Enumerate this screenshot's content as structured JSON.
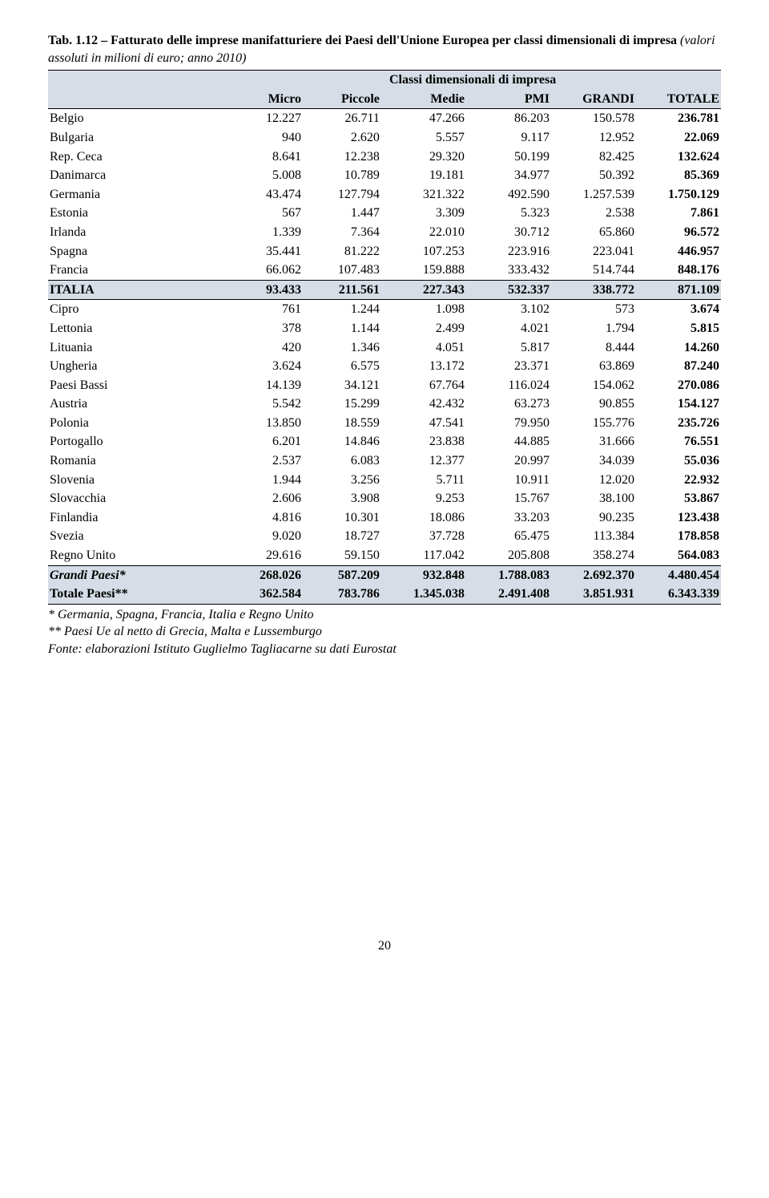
{
  "title_bold": "Tab. 1.12 – Fatturato delle imprese manifatturiere dei Paesi dell'Unione Europea per classi dimensionali di impresa",
  "title_italic": "(valori assoluti in milioni di euro; anno 2010)",
  "super_header": "Classi dimensionali di impresa",
  "columns": [
    "Micro",
    "Piccole",
    "Medie",
    "PMI",
    "GRANDI",
    "TOTALE"
  ],
  "rows": [
    {
      "name": "Belgio",
      "vals": [
        "12.227",
        "26.711",
        "47.266",
        "86.203",
        "150.578",
        "236.781"
      ]
    },
    {
      "name": "Bulgaria",
      "vals": [
        "940",
        "2.620",
        "5.557",
        "9.117",
        "12.952",
        "22.069"
      ]
    },
    {
      "name": "Rep. Ceca",
      "vals": [
        "8.641",
        "12.238",
        "29.320",
        "50.199",
        "82.425",
        "132.624"
      ]
    },
    {
      "name": "Danimarca",
      "vals": [
        "5.008",
        "10.789",
        "19.181",
        "34.977",
        "50.392",
        "85.369"
      ]
    },
    {
      "name": "Germania",
      "vals": [
        "43.474",
        "127.794",
        "321.322",
        "492.590",
        "1.257.539",
        "1.750.129"
      ]
    },
    {
      "name": "Estonia",
      "vals": [
        "567",
        "1.447",
        "3.309",
        "5.323",
        "2.538",
        "7.861"
      ]
    },
    {
      "name": "Irlanda",
      "vals": [
        "1.339",
        "7.364",
        "22.010",
        "30.712",
        "65.860",
        "96.572"
      ]
    },
    {
      "name": "Spagna",
      "vals": [
        "35.441",
        "81.222",
        "107.253",
        "223.916",
        "223.041",
        "446.957"
      ]
    },
    {
      "name": "Francia",
      "vals": [
        "66.062",
        "107.483",
        "159.888",
        "333.432",
        "514.744",
        "848.176"
      ]
    },
    {
      "name": "ITALIA",
      "vals": [
        "93.433",
        "211.561",
        "227.343",
        "532.337",
        "338.772",
        "871.109"
      ],
      "hl": true,
      "bold": true,
      "bt": true
    },
    {
      "name": "Cipro",
      "vals": [
        "761",
        "1.244",
        "1.098",
        "3.102",
        "573",
        "3.674"
      ],
      "bt": true
    },
    {
      "name": "Lettonia",
      "vals": [
        "378",
        "1.144",
        "2.499",
        "4.021",
        "1.794",
        "5.815"
      ]
    },
    {
      "name": "Lituania",
      "vals": [
        "420",
        "1.346",
        "4.051",
        "5.817",
        "8.444",
        "14.260"
      ]
    },
    {
      "name": "Ungheria",
      "vals": [
        "3.624",
        "6.575",
        "13.172",
        "23.371",
        "63.869",
        "87.240"
      ]
    },
    {
      "name": "Paesi Bassi",
      "vals": [
        "14.139",
        "34.121",
        "67.764",
        "116.024",
        "154.062",
        "270.086"
      ]
    },
    {
      "name": "Austria",
      "vals": [
        "5.542",
        "15.299",
        "42.432",
        "63.273",
        "90.855",
        "154.127"
      ]
    },
    {
      "name": "Polonia",
      "vals": [
        "13.850",
        "18.559",
        "47.541",
        "79.950",
        "155.776",
        "235.726"
      ]
    },
    {
      "name": "Portogallo",
      "vals": [
        "6.201",
        "14.846",
        "23.838",
        "44.885",
        "31.666",
        "76.551"
      ]
    },
    {
      "name": "Romania",
      "vals": [
        "2.537",
        "6.083",
        "12.377",
        "20.997",
        "34.039",
        "55.036"
      ]
    },
    {
      "name": "Slovenia",
      "vals": [
        "1.944",
        "3.256",
        "5.711",
        "10.911",
        "12.020",
        "22.932"
      ]
    },
    {
      "name": "Slovacchia",
      "vals": [
        "2.606",
        "3.908",
        "9.253",
        "15.767",
        "38.100",
        "53.867"
      ]
    },
    {
      "name": "Finlandia",
      "vals": [
        "4.816",
        "10.301",
        "18.086",
        "33.203",
        "90.235",
        "123.438"
      ]
    },
    {
      "name": "Svezia",
      "vals": [
        "9.020",
        "18.727",
        "37.728",
        "65.475",
        "113.384",
        "178.858"
      ]
    },
    {
      "name": "Regno Unito",
      "vals": [
        "29.616",
        "59.150",
        "117.042",
        "205.808",
        "358.274",
        "564.083"
      ]
    },
    {
      "name": "Grandi Paesi*",
      "vals": [
        "268.026",
        "587.209",
        "932.848",
        "1.788.083",
        "2.692.370",
        "4.480.454"
      ],
      "hl": true,
      "bold": true,
      "italic": true,
      "bth": true
    },
    {
      "name": "Totale Paesi**",
      "vals": [
        "362.584",
        "783.786",
        "1.345.038",
        "2.491.408",
        "3.851.931",
        "6.343.339"
      ],
      "hl": true,
      "bold": true,
      "bbh": true
    }
  ],
  "footnote1": "* Germania, Spagna, Francia, Italia e Regno Unito",
  "footnote2": "** Paesi Ue al netto di Grecia, Malta e Lussemburgo",
  "footnote3": "Fonte: elaborazioni Istituto Guglielmo Tagliacarne su dati Eurostat",
  "page_number": "20"
}
